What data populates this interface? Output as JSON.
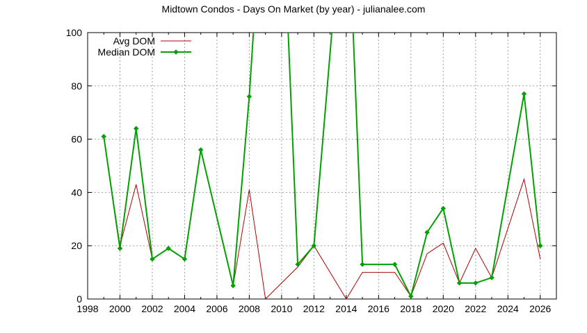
{
  "chart_data": {
    "type": "line",
    "title": "Midtown Condos - Days On Market (by year) - julianalee.com",
    "xlabel": "",
    "ylabel": "",
    "xlim": [
      1998,
      2027
    ],
    "ylim": [
      0,
      100
    ],
    "xticks": [
      "1998",
      "2000",
      "2002",
      "2004",
      "2006",
      "2008",
      "2010",
      "2012",
      "2014",
      "2016",
      "2018",
      "2020",
      "2022",
      "2024",
      "2026"
    ],
    "yticks": [
      "0",
      "20",
      "40",
      "60",
      "80",
      "100"
    ],
    "grid": true,
    "legend_position": "top-left",
    "series": [
      {
        "name": "Avg DOM",
        "color": "#b00000",
        "markers": false,
        "x": [
          1999,
          2000,
          2001,
          2002,
          2003,
          2004,
          2005,
          2007,
          2008,
          2009,
          2011,
          2012,
          2014,
          2015,
          2017,
          2018,
          2019,
          2020,
          2021,
          2022,
          2023,
          2025,
          2026
        ],
        "y": [
          61,
          20,
          43,
          15,
          19,
          15,
          56,
          5,
          41,
          0,
          12,
          20,
          0,
          10,
          10,
          1,
          17,
          21,
          6,
          19,
          8,
          45,
          15
        ]
      },
      {
        "name": "Median DOM",
        "color": "#00a000",
        "markers": true,
        "x": [
          1999,
          2000,
          2001,
          2002,
          2003,
          2004,
          2005,
          2007,
          2008,
          2009,
          2010,
          2011,
          2012,
          2014,
          2015,
          2017,
          2018,
          2019,
          2020,
          2021,
          2022,
          2023,
          2025,
          2026
        ],
        "y": [
          61,
          19,
          64,
          15,
          19,
          15,
          56,
          5,
          76,
          170,
          160,
          13,
          20,
          165,
          13,
          13,
          1,
          25,
          34,
          6,
          6,
          8,
          77,
          20
        ]
      }
    ]
  }
}
